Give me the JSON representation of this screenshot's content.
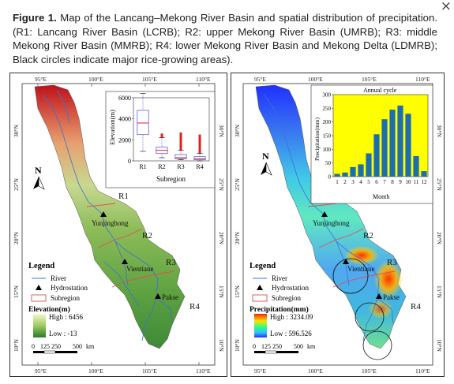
{
  "caption": {
    "label": "Figure 1.",
    "text": "Map of the Lancang–Mekong River Basin and spatial distribution of precipitation. (R1: Lancang River Basin (LCRB); R2: upper Mekong River Basin (UMRB); R3: middle Mekong River Basin (MMRB); R4: lower Mekong River Basin and Mekong Delta (LDMRB); Black circles indicate major rice-growing areas)."
  },
  "close_label": "×",
  "left_map": {
    "top_lon": [
      "95°E",
      "100°E",
      "105°E",
      "110°E"
    ],
    "bottom_lon": [
      "95°E",
      "100°E",
      "105°E",
      "110°E"
    ],
    "lat": [
      "30°N",
      "25°N",
      "20°N",
      "15°N",
      "10°N"
    ],
    "regions": [
      "R1",
      "R2",
      "R3",
      "R4"
    ],
    "stations": [
      "Yunjinghong",
      "Vientiane",
      "Pakse"
    ],
    "north": "N",
    "legend": {
      "title": "Legend",
      "river": "River",
      "hydro": "Hydrostation",
      "subregion": "Subregion",
      "elev_title": "Elevation(m)",
      "high": "High : 6456",
      "low": "Low : -13"
    },
    "scale": {
      "ticks": [
        "0",
        "125",
        "250",
        "500"
      ],
      "unit": "km"
    },
    "colors": {
      "high": "#c0101a",
      "mid": "#d8e890",
      "low": "#2e7d32",
      "river": "#3a6fd8",
      "subregion": "#e05050"
    }
  },
  "right_map": {
    "top_lon": [
      "95°E",
      "100°E",
      "105°E",
      "110°E"
    ],
    "bottom_lon": [
      "95°E",
      "100°E",
      "105°E",
      "110°E"
    ],
    "lat": [
      "30°N",
      "25°N",
      "20°N",
      "15°N",
      "10°N"
    ],
    "regions": [
      "R1",
      "R2",
      "R3",
      "R4"
    ],
    "stations": [
      "Yunjinghong",
      "Vientiane",
      "Pakse"
    ],
    "north": "N",
    "legend": {
      "title": "Legend",
      "river": "River",
      "hydro": "Hydrostation",
      "subregion": "Subregion",
      "precip_title": "Precipitation(mm)",
      "high": "High : 3234.09",
      "low": "Low : 596.526"
    },
    "scale": {
      "ticks": [
        "0",
        "125",
        "250",
        "500"
      ],
      "unit": "km"
    },
    "colors": {
      "high": "#ff2000",
      "mid": "#30ff80",
      "low": "#2030ff"
    }
  },
  "chart_data": [
    {
      "type": "box",
      "ylabel": "Elevation(m)",
      "xlabel": "Subregion",
      "categories": [
        "R1",
        "R2",
        "R3",
        "R4"
      ],
      "ylim": [
        0,
        6000
      ],
      "yticks": [
        "0",
        "2000",
        "4000",
        "6000"
      ],
      "boxes": [
        {
          "name": "R1",
          "min": 900,
          "q1": 2500,
          "median": 3600,
          "q3": 4800,
          "max": 6400
        },
        {
          "name": "R2",
          "min": 300,
          "q1": 700,
          "median": 1000,
          "q3": 1300,
          "max": 2200,
          "outliers_to": 2600
        },
        {
          "name": "R3",
          "min": 100,
          "q1": 200,
          "median": 300,
          "q3": 600,
          "max": 1000,
          "outliers_to": 2700
        },
        {
          "name": "R4",
          "min": 0,
          "q1": 100,
          "median": 200,
          "q3": 400,
          "max": 700,
          "outliers_to": 2500
        }
      ]
    },
    {
      "type": "bar",
      "title": "Annual cycle",
      "xlabel": "Month",
      "ylabel": "Precipitation(mm)",
      "categories": [
        "1",
        "2",
        "3",
        "4",
        "5",
        "6",
        "7",
        "8",
        "9",
        "10",
        "11",
        "12"
      ],
      "values": [
        10,
        15,
        35,
        45,
        85,
        155,
        210,
        245,
        260,
        230,
        75,
        20
      ],
      "ylim": [
        0,
        300
      ],
      "yticks": [
        "0",
        "50",
        "100",
        "150",
        "200",
        "250",
        "300"
      ],
      "colors": {
        "bar": "#1c6eaf",
        "background": "#ffff00"
      }
    }
  ]
}
